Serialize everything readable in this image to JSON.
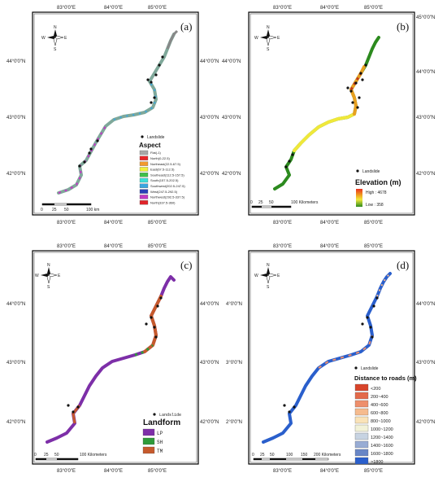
{
  "panels": {
    "a": {
      "letter": "(a)",
      "x_ticks": [
        "83°0'0\"E",
        "84°0'0\"E",
        "85°0'0\"E"
      ],
      "y_ticks": [
        "44°0'0\"N",
        "43°0'0\"N",
        "42°0'0\"N"
      ],
      "landslide": "Landslide",
      "legend_title": "Aspect",
      "legend": [
        {
          "label": "Flat(-1)",
          "color": "#a8a8a8"
        },
        {
          "label": "North(0-22.5)",
          "color": "#e8262a"
        },
        {
          "label": "Northeast(22.5-67.5)",
          "color": "#f39a2c"
        },
        {
          "label": "East(67.5-112.5)",
          "color": "#f2ef3a"
        },
        {
          "label": "Southeast(112.5-157.5)",
          "color": "#3fc04a"
        },
        {
          "label": "South(157.5-202.5)",
          "color": "#3de0d8"
        },
        {
          "label": "Southwest(202.5-247.5)",
          "color": "#3aa6e0"
        },
        {
          "label": "West(247.5-292.5)",
          "color": "#2a3fb8"
        },
        {
          "label": "Northwest(292.5-337.5)",
          "color": "#c238c4"
        },
        {
          "label": "North(337.5-360)",
          "color": "#e0242a"
        }
      ],
      "scale": [
        "0",
        "25",
        "50",
        "100 km"
      ]
    },
    "b": {
      "letter": "(b)",
      "x_ticks": [
        "83°0'0\"E",
        "84°0'0\"E",
        "85°0'0\"E"
      ],
      "y_ticks_left": [
        "44°0'0\"N",
        "43°0'0\"N",
        "42°0'0\"N"
      ],
      "y_ticks_right": [
        "45°0'0\"N",
        "44°0'0\"N",
        "43°0'0\"N",
        "42°0'0\"N"
      ],
      "landslide": "Landslide",
      "legend_title": "Elevation (m)",
      "high": "High : 4678",
      "low": "Low : 358",
      "scale": [
        "0",
        "25",
        "50",
        "100 Kilometers"
      ]
    },
    "c": {
      "letter": "(c)",
      "x_ticks": [
        "83°0'0\"E",
        "84°0'0\"E",
        "85°0'0\"E"
      ],
      "y_ticks": [
        "44°0'0\"N",
        "43°0'0\"N",
        "42°0'0\"N"
      ],
      "landslide": "Landslide",
      "legend_title": "Landform",
      "legend": [
        {
          "label": "LP",
          "color": "#7d2fa8"
        },
        {
          "label": "SH",
          "color": "#2e9b3a"
        },
        {
          "label": "TM",
          "color": "#c65a2c"
        }
      ],
      "scale": [
        "0",
        "25",
        "50",
        "100 Kilometers"
      ]
    },
    "d": {
      "letter": "(d)",
      "x_ticks": [
        "83°0'0\"E",
        "84°0'0\"E",
        "85°0'0\"E"
      ],
      "y_ticks_left": [
        "4°0'0\"N",
        "3°0'0\"N",
        "2°0'0\"N"
      ],
      "y_ticks_right": [
        "44°0'0\"N",
        "43°0'0\"N",
        "42°0'0\"N"
      ],
      "landslide": "Landslide",
      "legend_title": "Distance to roads (m)",
      "legend": [
        {
          "label": "<200",
          "color": "#d8442a"
        },
        {
          "label": "200~400",
          "color": "#e36a4a"
        },
        {
          "label": "400~600",
          "color": "#ee8f6c"
        },
        {
          "label": "600~800",
          "color": "#f6bb8e"
        },
        {
          "label": "800~1000",
          "color": "#fae3b8"
        },
        {
          "label": "1000~1200",
          "color": "#f2f2d8"
        },
        {
          "label": "1200~1400",
          "color": "#c7d3e2"
        },
        {
          "label": "1400~1600",
          "color": "#98acd4"
        },
        {
          "label": "1600~1800",
          "color": "#6886c6"
        },
        {
          "label": ">1800",
          "color": "#2a5fcc"
        }
      ],
      "scale": [
        "0",
        "25",
        "50",
        "100",
        "150",
        "200 Kilometers"
      ]
    }
  },
  "compass": {
    "n": "N",
    "s": "S",
    "e": "E",
    "w": "W"
  }
}
